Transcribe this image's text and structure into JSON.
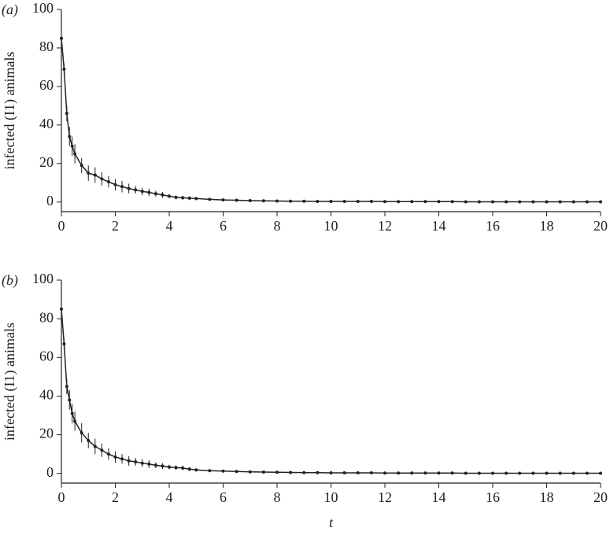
{
  "chart_data": [
    {
      "type": "line",
      "panel_label": "(a)",
      "ylabel": "infected (I1) animals",
      "xlim": [
        0,
        20
      ],
      "ylim": [
        -5,
        100
      ],
      "xticks": [
        0,
        2,
        4,
        6,
        8,
        10,
        12,
        14,
        16,
        18,
        20
      ],
      "yticks": [
        0,
        20,
        40,
        60,
        80,
        100
      ],
      "x": [
        0,
        0.1,
        0.2,
        0.3,
        0.4,
        0.5,
        0.75,
        1,
        1.25,
        1.5,
        1.75,
        2,
        2.25,
        2.5,
        2.75,
        3,
        3.25,
        3.5,
        3.75,
        4,
        4.25,
        4.5,
        4.75,
        5,
        5.5,
        6,
        6.5,
        7,
        7.5,
        8,
        8.5,
        9,
        9.5,
        10,
        10.5,
        11,
        11.5,
        12,
        12.5,
        13,
        13.5,
        14,
        14.5,
        15,
        15.5,
        16,
        16.5,
        17,
        17.5,
        18,
        18.5,
        19,
        19.5,
        20
      ],
      "series": [
        {
          "color": "#222222",
          "values": [
            85,
            69,
            46,
            34,
            29,
            25,
            19,
            15,
            14,
            12,
            10.5,
            9,
            8,
            7,
            6.3,
            5.5,
            5,
            4.3,
            3.7,
            3,
            2.4,
            2.2,
            2,
            1.8,
            1.4,
            1.1,
            0.9,
            0.7,
            0.6,
            0.5,
            0.4,
            0.4,
            0.3,
            0.3,
            0.3,
            0.3,
            0.3,
            0.2,
            0.2,
            0.2,
            0.2,
            0.2,
            0.2,
            0.1,
            0.1,
            0.1,
            0.1,
            0.1,
            0.1,
            0.1,
            0.1,
            0.1,
            0.1,
            0.1
          ],
          "errors": [
            2,
            3,
            4,
            5,
            5,
            5,
            4,
            4,
            4,
            3.5,
            3,
            3,
            3,
            2.5,
            2,
            2,
            2,
            1.5,
            1.5,
            1,
            1,
            1,
            1,
            0.8,
            0.6,
            0.5,
            0.5,
            0.4,
            0.4,
            0.4,
            0.3,
            0.3,
            0.3,
            0.3,
            0.3,
            0.3,
            0.3,
            0.3,
            0.3,
            0.3,
            0.3,
            0.3,
            0.3,
            0.3,
            0.3,
            0.3,
            0.3,
            0.3,
            0.3,
            0.3,
            0.3,
            0.3,
            0.3,
            0.3
          ]
        }
      ]
    },
    {
      "type": "line",
      "panel_label": "(b)",
      "ylabel": "infected (I1) animals",
      "xlabel": "t",
      "xlim": [
        0,
        20
      ],
      "ylim": [
        -5,
        100
      ],
      "xticks": [
        0,
        2,
        4,
        6,
        8,
        10,
        12,
        14,
        16,
        18,
        20
      ],
      "yticks": [
        0,
        20,
        40,
        60,
        80,
        100
      ],
      "x": [
        0,
        0.1,
        0.2,
        0.3,
        0.4,
        0.5,
        0.75,
        1,
        1.25,
        1.5,
        1.75,
        2,
        2.25,
        2.5,
        2.75,
        3,
        3.25,
        3.5,
        3.75,
        4,
        4.25,
        4.5,
        4.75,
        5,
        5.5,
        6,
        6.5,
        7,
        7.5,
        8,
        8.5,
        9,
        9.5,
        10,
        10.5,
        11,
        11.5,
        12,
        12.5,
        13,
        13.5,
        14,
        14.5,
        15,
        15.5,
        16,
        16.5,
        17,
        17.5,
        18,
        18.5,
        19,
        19.5,
        20
      ],
      "series": [
        {
          "color": "#222222",
          "values": [
            85,
            67,
            45,
            38,
            31,
            27,
            21,
            17,
            14,
            12,
            10,
            8.5,
            7.5,
            6.5,
            6,
            5.3,
            4.8,
            4.2,
            3.8,
            3.3,
            3,
            2.8,
            2.2,
            1.8,
            1.4,
            1.2,
            1,
            0.8,
            0.7,
            0.6,
            0.5,
            0.4,
            0.4,
            0.3,
            0.3,
            0.3,
            0.3,
            0.2,
            0.2,
            0.2,
            0.2,
            0.2,
            0.2,
            0.1,
            0.1,
            0.1,
            0.1,
            0.1,
            0.1,
            0.1,
            0.1,
            0.1,
            0.1,
            0.1
          ],
          "errors": [
            2,
            3,
            4,
            5,
            5,
            5,
            5,
            4,
            4,
            3.5,
            3,
            3,
            2.5,
            2.5,
            2,
            2,
            2,
            1.5,
            1.5,
            1.2,
            1.2,
            1.2,
            1,
            0.8,
            0.6,
            0.5,
            0.5,
            0.4,
            0.4,
            0.4,
            0.3,
            0.3,
            0.3,
            0.3,
            0.3,
            0.3,
            0.3,
            0.3,
            0.3,
            0.3,
            0.3,
            0.3,
            0.3,
            0.3,
            0.3,
            0.3,
            0.3,
            0.3,
            0.3,
            0.3,
            0.3,
            0.3,
            0.3,
            0.3
          ]
        }
      ]
    }
  ]
}
